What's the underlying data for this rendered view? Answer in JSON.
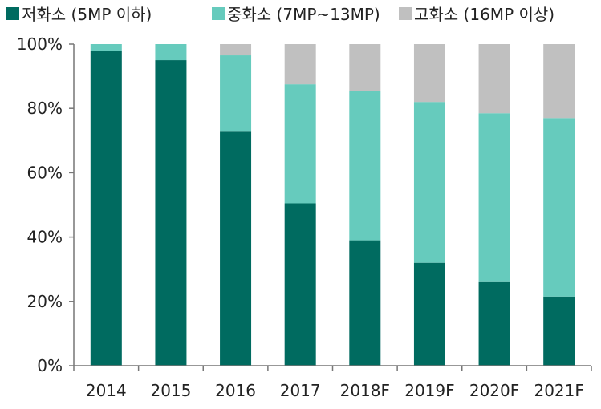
{
  "chart_data": {
    "type": "bar",
    "stacked": true,
    "categories": [
      "2014",
      "2015",
      "2016",
      "2017",
      "2018F",
      "2019F",
      "2020F",
      "2021F"
    ],
    "series": [
      {
        "name": "저화소 (5MP 이하)",
        "color": "#006b60",
        "values": [
          98,
          95,
          73,
          50.5,
          39,
          32,
          26,
          21.5
        ]
      },
      {
        "name": "중화소 (7MP~13MP)",
        "color": "#66cbbd",
        "values": [
          2,
          5,
          23.5,
          37,
          46.5,
          50,
          52.5,
          55.5
        ]
      },
      {
        "name": "고화소 (16MP 이상)",
        "color": "#c0c0c0",
        "values": [
          0,
          0,
          3.5,
          12.5,
          14.5,
          18,
          21.5,
          23
        ]
      }
    ],
    "yticks": [
      "0%",
      "20%",
      "40%",
      "60%",
      "80%",
      "100%"
    ],
    "ytick_values": [
      0,
      20,
      40,
      60,
      80,
      100
    ],
    "ylim": [
      0,
      100
    ],
    "legend_position": "top",
    "grid": false
  }
}
